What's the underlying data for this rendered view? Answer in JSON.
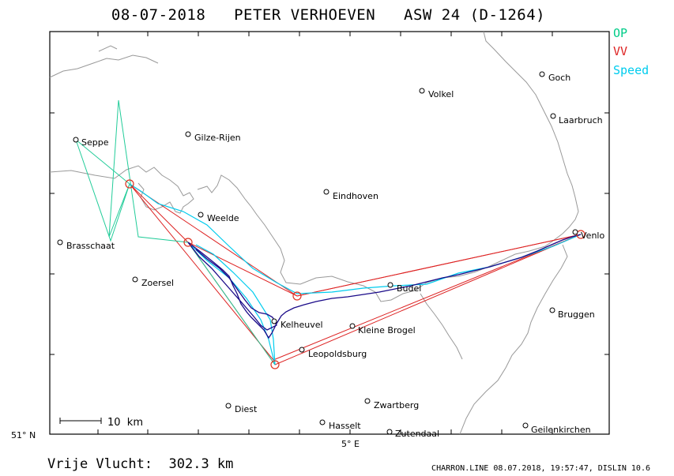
{
  "title": "08-07-2018   PETER VERHOEVEN   ASW 24 (D-1264)",
  "legend": [
    {
      "label": "OP",
      "color": "#00cc88"
    },
    {
      "label": "VV",
      "color": "#dd2222"
    },
    {
      "label": "Speed",
      "color": "#00ccee"
    }
  ],
  "axes": {
    "lat_label": "51° N",
    "lon_label": "5° E"
  },
  "scale_bar_label": "10  km",
  "places": [
    {
      "name": "Seppe"
    },
    {
      "name": "Gilze-Rijen"
    },
    {
      "name": "Volkel"
    },
    {
      "name": "Goch"
    },
    {
      "name": "Laarbruch"
    },
    {
      "name": "Eindhoven"
    },
    {
      "name": "Weelde"
    },
    {
      "name": "Brasschaat"
    },
    {
      "name": "Venlo"
    },
    {
      "name": "Zoersel"
    },
    {
      "name": "Budel"
    },
    {
      "name": "Bruggen"
    },
    {
      "name": "Kelheuvel"
    },
    {
      "name": "Kleine Brogel"
    },
    {
      "name": "Leopoldsburg"
    },
    {
      "name": "Zwartberg"
    },
    {
      "name": "Diest"
    },
    {
      "name": "Hasselt"
    },
    {
      "name": "Geilenkirchen"
    },
    {
      "name": "Zutendaal"
    }
  ],
  "footer": {
    "distance": "Vrije Vlucht:  302.3 km",
    "stamp": "CHARRON.LINE 08.07.2018, 19:57:47, DISLIN 10.6"
  }
}
